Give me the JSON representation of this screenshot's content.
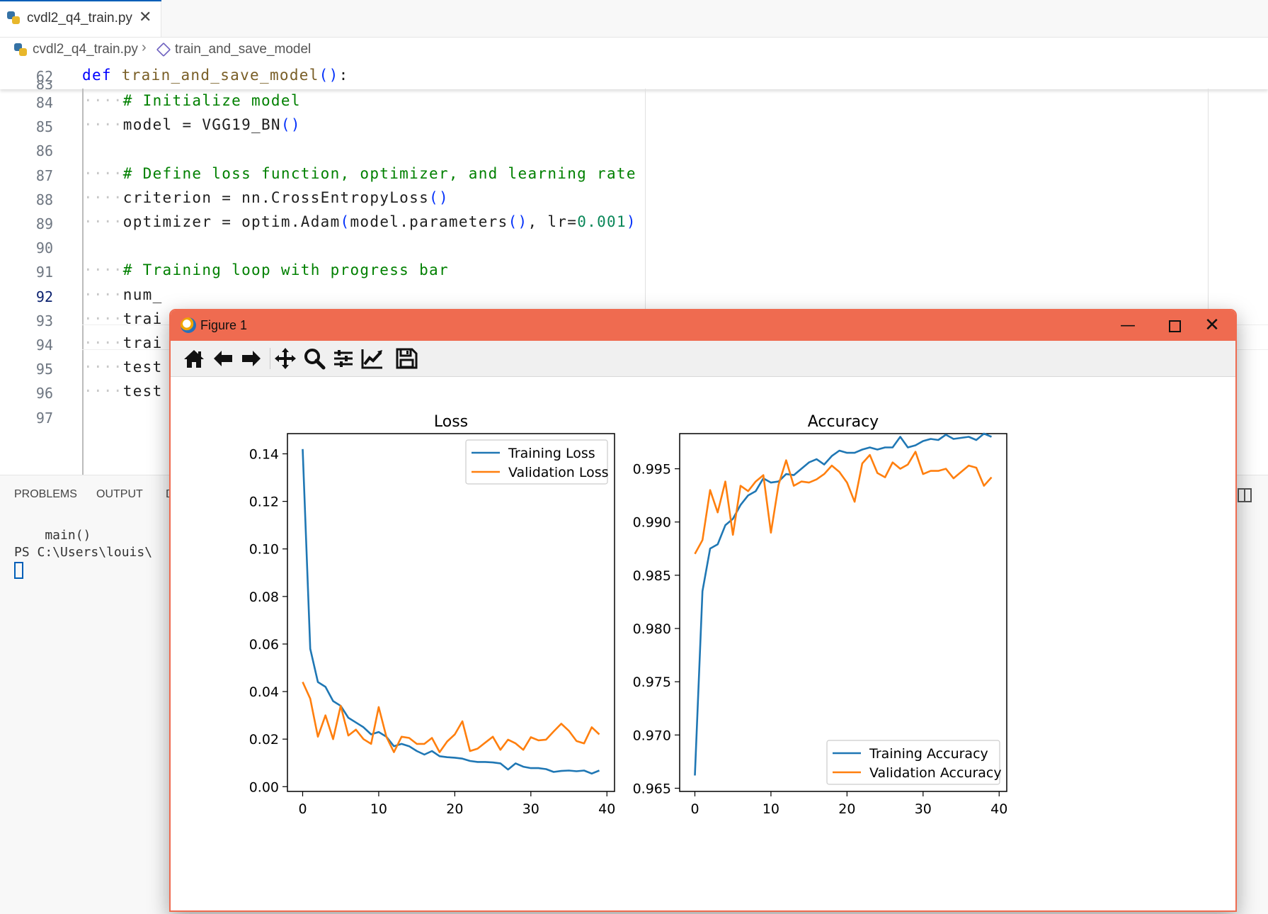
{
  "editor": {
    "tab": {
      "title": "cvdl2_q4_train.py",
      "close_glyph": "✕"
    },
    "breadcrumb": {
      "file": "cvdl2_q4_train.py",
      "separator": "›",
      "function": "train_and_save_model"
    },
    "sticky": {
      "line_number": "62",
      "keyword": "def",
      "name": "train_and_save_model",
      "parens": "()",
      "colon": ":"
    },
    "partial_line_number": "83",
    "lines": [
      {
        "n": "84",
        "dots": "····",
        "segments": [
          {
            "t": "# Initialize model",
            "c": "cm"
          }
        ]
      },
      {
        "n": "85",
        "dots": "····",
        "segments": [
          {
            "t": "model = VGG19_BN",
            "c": ""
          },
          {
            "t": "()",
            "c": "pn"
          }
        ]
      },
      {
        "n": "86",
        "dots": "",
        "segments": []
      },
      {
        "n": "87",
        "dots": "····",
        "segments": [
          {
            "t": "# Define loss function, optimizer, and learning rate",
            "c": "cm"
          }
        ]
      },
      {
        "n": "88",
        "dots": "····",
        "segments": [
          {
            "t": "criterion = nn.CrossEntropyLoss",
            "c": ""
          },
          {
            "t": "()",
            "c": "pn"
          }
        ]
      },
      {
        "n": "89",
        "dots": "····",
        "segments": [
          {
            "t": "optimizer = optim.Adam",
            "c": ""
          },
          {
            "t": "(",
            "c": "pn"
          },
          {
            "t": "model.parameters",
            "c": ""
          },
          {
            "t": "()",
            "c": "pn"
          },
          {
            "t": ", lr=",
            "c": ""
          },
          {
            "t": "0.001",
            "c": "num"
          },
          {
            "t": ")",
            "c": "pn"
          }
        ]
      },
      {
        "n": "90",
        "dots": "",
        "segments": []
      },
      {
        "n": "91",
        "dots": "····",
        "segments": [
          {
            "t": "# Training loop with progress bar",
            "c": "cm"
          }
        ]
      },
      {
        "n": "92",
        "dots": "····",
        "segments": [
          {
            "t": "num_",
            "c": ""
          }
        ]
      },
      {
        "n": "93",
        "dots": "····",
        "segments": [
          {
            "t": "trai",
            "c": ""
          }
        ]
      },
      {
        "n": "94",
        "dots": "····",
        "segments": [
          {
            "t": "trai",
            "c": ""
          }
        ]
      },
      {
        "n": "95",
        "dots": "····",
        "segments": [
          {
            "t": "test",
            "c": ""
          }
        ]
      },
      {
        "n": "96",
        "dots": "····",
        "segments": [
          {
            "t": "test",
            "c": ""
          }
        ]
      },
      {
        "n": "97",
        "dots": "",
        "segments": []
      }
    ]
  },
  "panel": {
    "tabs": [
      "PROBLEMS",
      "OUTPUT",
      "D"
    ],
    "terminal": {
      "line1": "    main()",
      "line2": "PS C:\\Users\\louis\\"
    }
  },
  "figure": {
    "title": "Figure 1",
    "controls": {
      "minimize": "—",
      "close": "✕"
    },
    "toolbar": [
      "home-icon",
      "back-arrow-icon",
      "forward-arrow-icon",
      "pan-icon",
      "zoom-icon",
      "subplots-config-icon",
      "axes-edit-icon",
      "save-icon"
    ]
  },
  "chart_data": [
    {
      "type": "line",
      "title": "Loss",
      "xlabel": "",
      "ylabel": "",
      "xlim": [
        -2,
        41
      ],
      "ylim": [
        -0.002,
        0.1485
      ],
      "xticks": [
        0,
        10,
        20,
        30,
        40
      ],
      "yticks": [
        0.0,
        0.02,
        0.04,
        0.06,
        0.08,
        0.1,
        0.12,
        0.14
      ],
      "ytick_labels": [
        "0.00",
        "0.02",
        "0.04",
        "0.06",
        "0.08",
        "0.10",
        "0.12",
        "0.14"
      ],
      "legend": "upper right",
      "colors": {
        "Training Loss": "#1f77b4",
        "Validation Loss": "#ff7f0e"
      },
      "series": [
        {
          "name": "Training Loss",
          "values": [
            0.142,
            0.058,
            0.044,
            0.042,
            0.036,
            0.034,
            0.029,
            0.027,
            0.025,
            0.022,
            0.023,
            0.021,
            0.017,
            0.018,
            0.017,
            0.015,
            0.0135,
            0.015,
            0.0128,
            0.0124,
            0.0122,
            0.0118,
            0.0108,
            0.0104,
            0.0104,
            0.0102,
            0.0098,
            0.0072,
            0.0098,
            0.0084,
            0.0078,
            0.0078,
            0.0074,
            0.0062,
            0.0066,
            0.0068,
            0.0065,
            0.0068,
            0.0055,
            0.0068
          ]
        },
        {
          "name": "Validation Loss",
          "values": [
            0.044,
            0.037,
            0.021,
            0.03,
            0.02,
            0.034,
            0.0215,
            0.024,
            0.02,
            0.018,
            0.0335,
            0.021,
            0.0145,
            0.021,
            0.0205,
            0.018,
            0.018,
            0.0205,
            0.0145,
            0.019,
            0.022,
            0.0275,
            0.015,
            0.016,
            0.0185,
            0.021,
            0.0155,
            0.0198,
            0.0182,
            0.0155,
            0.0208,
            0.0195,
            0.0198,
            0.0232,
            0.0265,
            0.0235,
            0.0192,
            0.0182,
            0.025,
            0.022
          ]
        }
      ]
    },
    {
      "type": "line",
      "title": "Accuracy",
      "xlabel": "",
      "ylabel": "",
      "xlim": [
        -2,
        41
      ],
      "ylim": [
        0.9647,
        0.9983
      ],
      "xticks": [
        0,
        10,
        20,
        30,
        40
      ],
      "yticks": [
        0.965,
        0.97,
        0.975,
        0.98,
        0.985,
        0.99,
        0.995
      ],
      "ytick_labels": [
        "0.965",
        "0.970",
        "0.975",
        "0.980",
        "0.985",
        "0.990",
        "0.995"
      ],
      "legend": "lower right",
      "colors": {
        "Training Accuracy": "#1f77b4",
        "Validation Accuracy": "#ff7f0e"
      },
      "series": [
        {
          "name": "Training Accuracy",
          "values": [
            0.9662,
            0.9835,
            0.9875,
            0.9879,
            0.9897,
            0.9903,
            0.9916,
            0.9925,
            0.9929,
            0.9941,
            0.9937,
            0.9938,
            0.9945,
            0.9944,
            0.995,
            0.9956,
            0.9959,
            0.9954,
            0.9962,
            0.9967,
            0.9965,
            0.9965,
            0.9968,
            0.997,
            0.9968,
            0.997,
            0.997,
            0.998,
            0.997,
            0.9972,
            0.9976,
            0.9978,
            0.9977,
            0.9982,
            0.9978,
            0.9979,
            0.998,
            0.9977,
            0.9983,
            0.998
          ]
        },
        {
          "name": "Validation Accuracy",
          "values": [
            0.987,
            0.9883,
            0.993,
            0.9909,
            0.9938,
            0.9888,
            0.9934,
            0.9929,
            0.9938,
            0.9944,
            0.989,
            0.9935,
            0.9958,
            0.9934,
            0.9938,
            0.9937,
            0.994,
            0.9945,
            0.9953,
            0.9947,
            0.9937,
            0.9919,
            0.9955,
            0.9963,
            0.9946,
            0.9942,
            0.9956,
            0.995,
            0.9954,
            0.9966,
            0.9945,
            0.9948,
            0.9948,
            0.995,
            0.9941,
            0.9947,
            0.9953,
            0.9951,
            0.9934,
            0.9942
          ]
        }
      ]
    }
  ]
}
